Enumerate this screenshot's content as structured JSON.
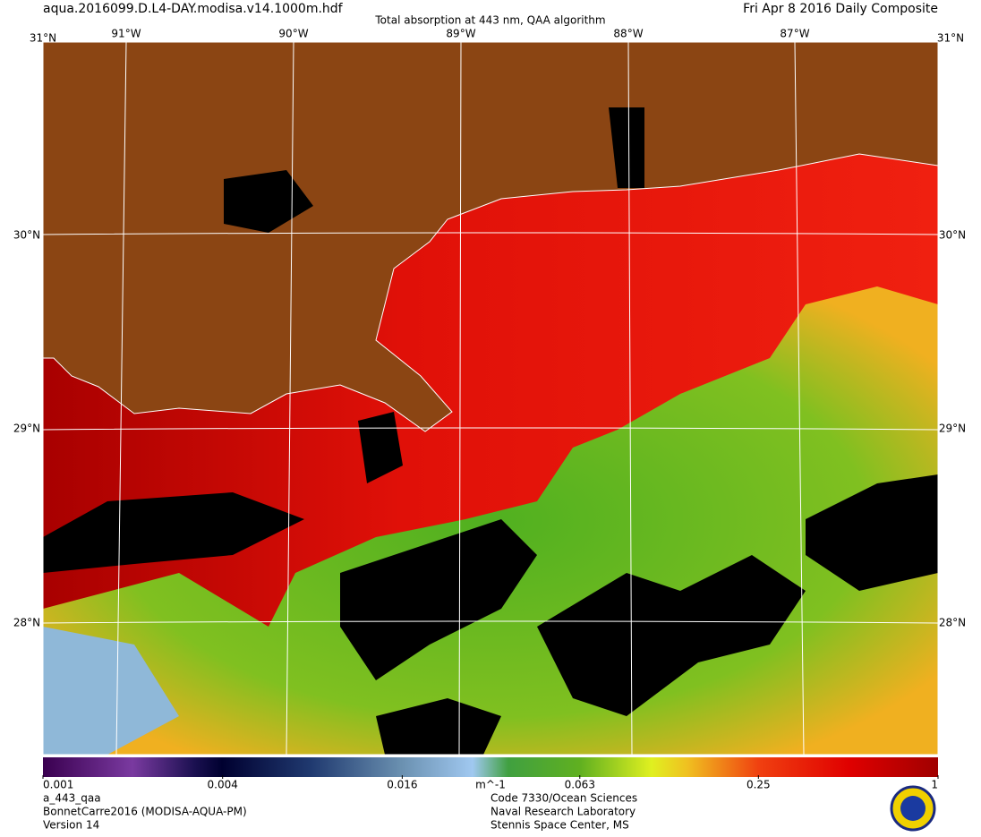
{
  "header": {
    "filename": "aqua.2016099.D.L4-DAY.modisa.v14.1000m.hdf",
    "title": "Total absorption at 443 nm, QAA algorithm",
    "date": "Fri Apr  8 2016 Daily Composite"
  },
  "graticule": {
    "top_left_lat": "31°N",
    "top_right_lat": "31°N",
    "lon_labels": [
      "91°W",
      "90°W",
      "89°W",
      "88°W",
      "87°W"
    ],
    "lat_labels": [
      "30°N",
      "29°N",
      "28°N"
    ]
  },
  "colorbar": {
    "range": [
      0.001,
      1
    ],
    "ticks": [
      0.001,
      0.004,
      0.016,
      0.063,
      0.25,
      1
    ],
    "unit": "m^-1",
    "log": true
  },
  "footer": {
    "left": [
      "a_443_qaa",
      "BonnetCarre2016 (MODISA-AQUA-PM)",
      "Version 14"
    ],
    "center": [
      "Code 7330/Ocean Sciences",
      "Naval Research Laboratory",
      "Stennis Space Center, MS"
    ]
  }
}
